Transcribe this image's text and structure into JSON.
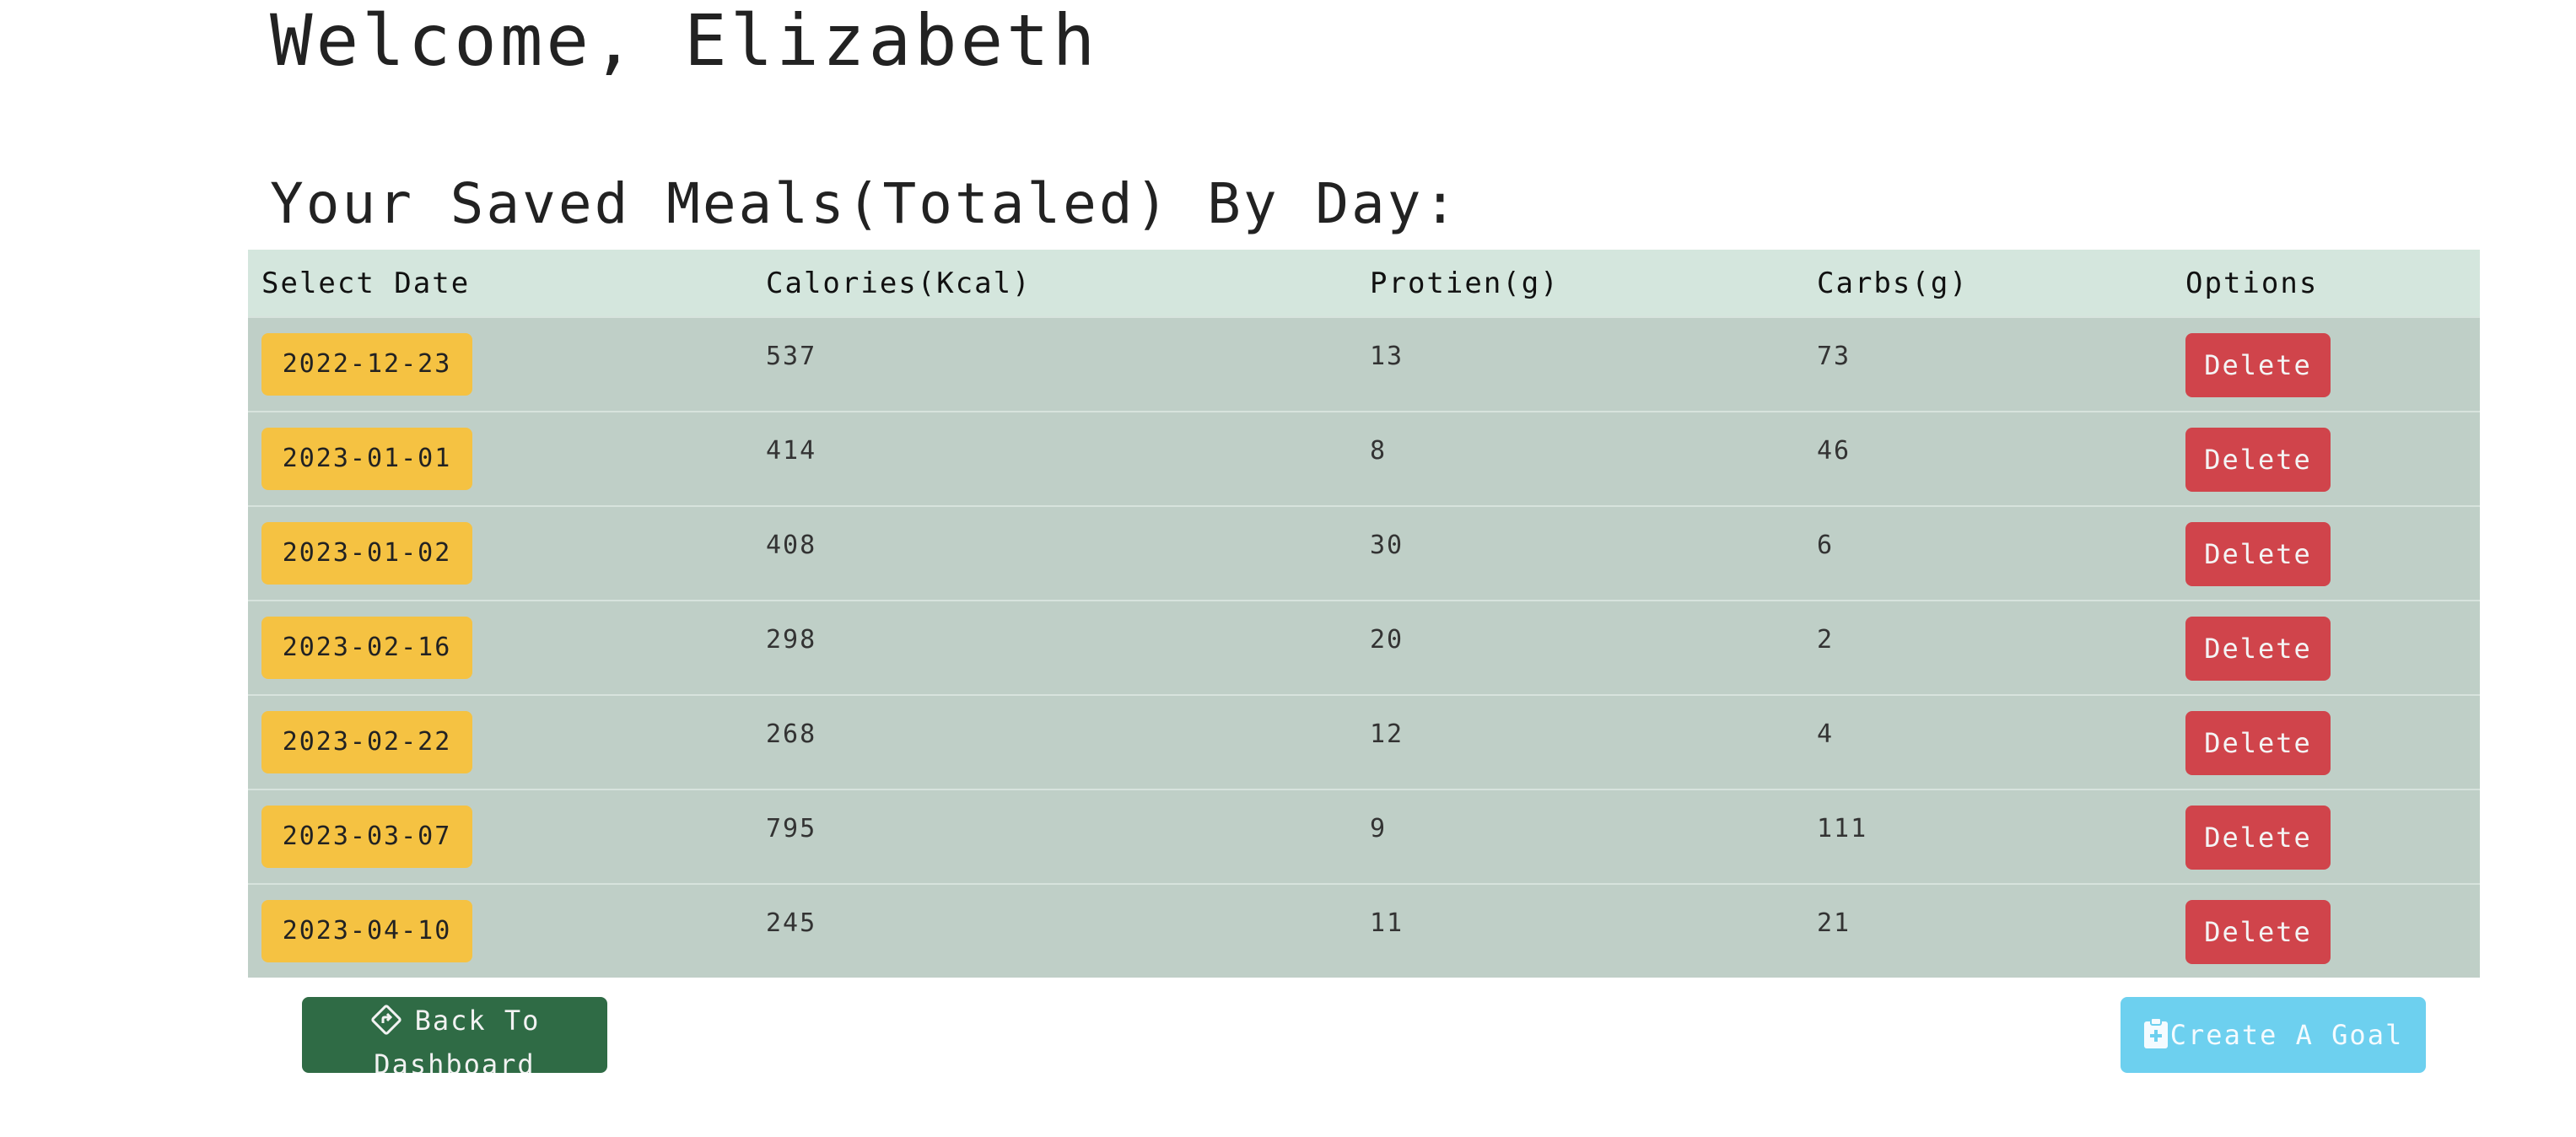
{
  "header": {
    "welcome": "Welcome, Elizabeth",
    "subtitle": "Your Saved Meals(Totaled) By Day:"
  },
  "table": {
    "columns": [
      "Select Date",
      "Calories(Kcal)",
      "Protien(g)",
      "Carbs(g)",
      "Options"
    ],
    "rows": [
      {
        "date": "2022-12-23",
        "calories": "537",
        "protein": "13",
        "carbs": "73",
        "action": "Delete"
      },
      {
        "date": "2023-01-01",
        "calories": "414",
        "protein": "8",
        "carbs": "46",
        "action": "Delete"
      },
      {
        "date": "2023-01-02",
        "calories": "408",
        "protein": "30",
        "carbs": "6",
        "action": "Delete"
      },
      {
        "date": "2023-02-16",
        "calories": "298",
        "protein": "20",
        "carbs": "2",
        "action": "Delete"
      },
      {
        "date": "2023-02-22",
        "calories": "268",
        "protein": "12",
        "carbs": "4",
        "action": "Delete"
      },
      {
        "date": "2023-03-07",
        "calories": "795",
        "protein": "9",
        "carbs": "111",
        "action": "Delete"
      },
      {
        "date": "2023-04-10",
        "calories": "245",
        "protein": "11",
        "carbs": "21",
        "action": "Delete"
      }
    ]
  },
  "footer": {
    "back_label": "Back To Dashboard",
    "back_icon": "turn-left-sign-icon",
    "goal_label": "Create A Goal",
    "goal_icon": "clipboard-plus-icon"
  },
  "colors": {
    "header_row": "#d4e6dd",
    "body_row": "#bfcfc7",
    "date_button": "#f5c242",
    "delete_button": "#d0444b",
    "back_button": "#2f6b45",
    "goal_button": "#6dd0ef"
  }
}
